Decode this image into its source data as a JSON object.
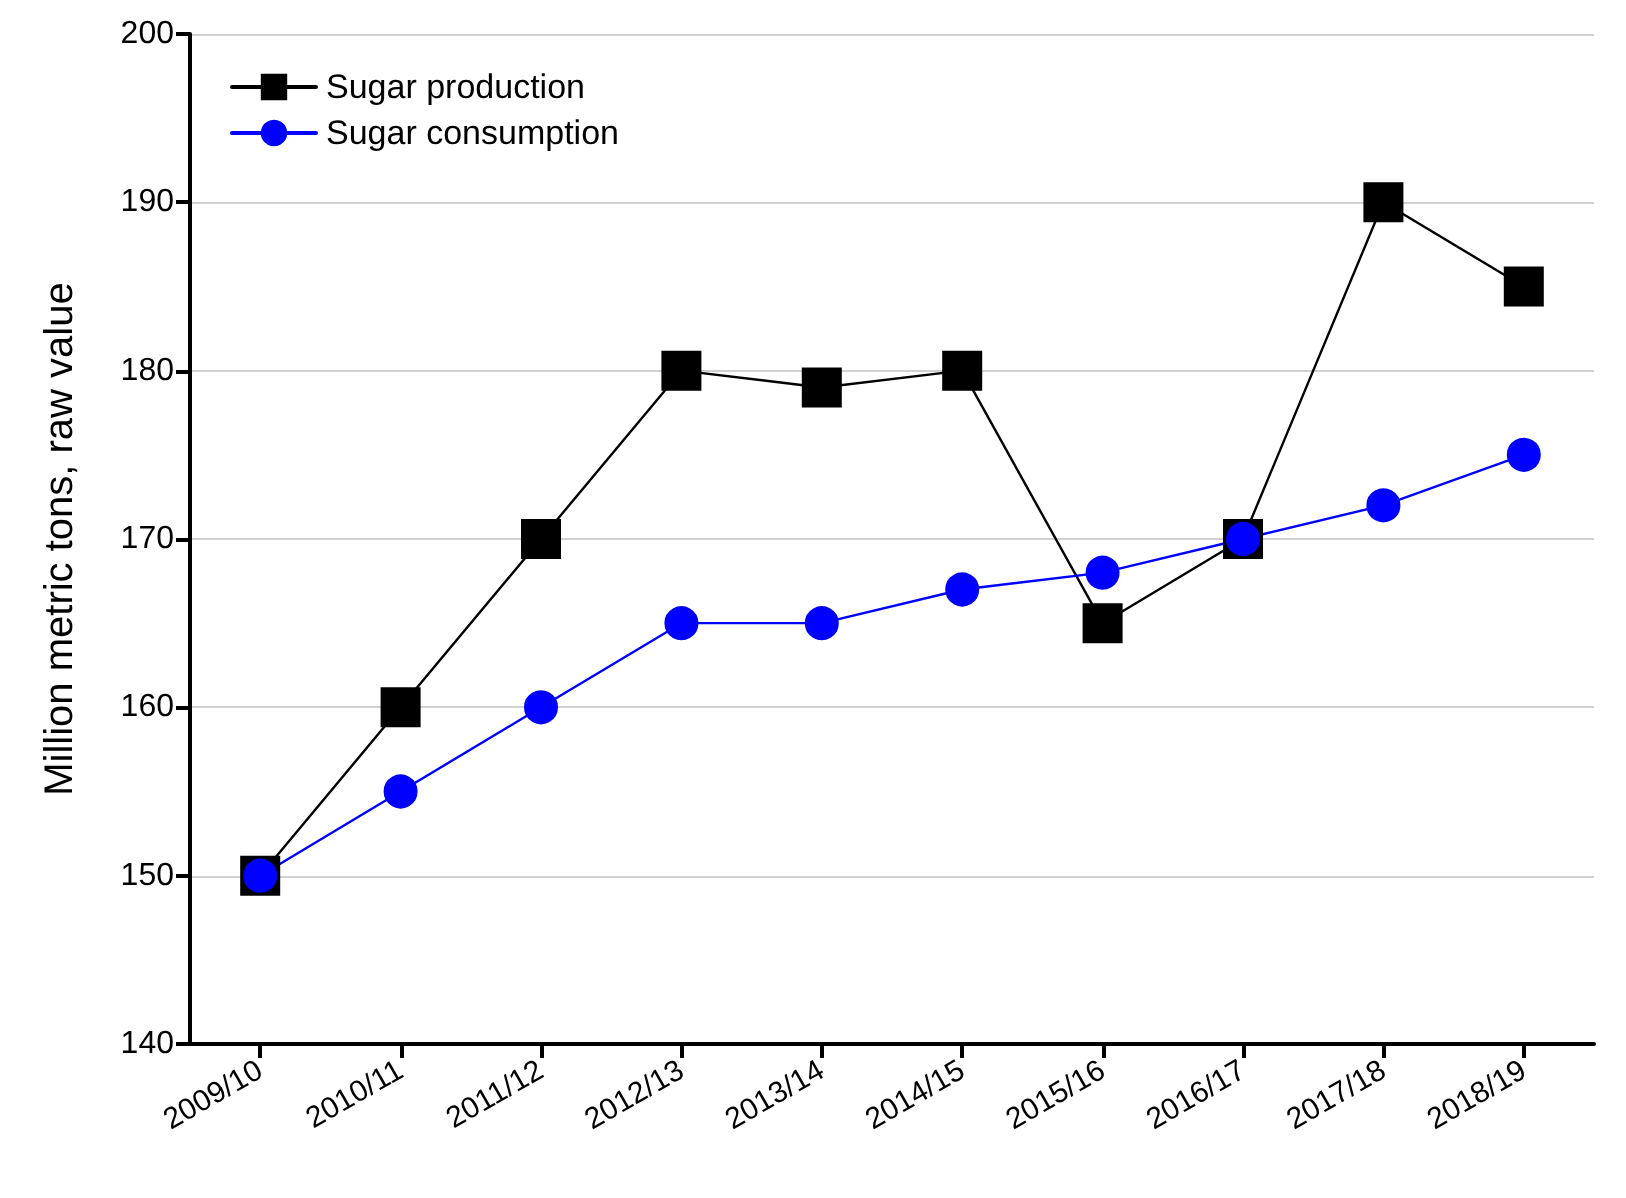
{
  "chart_data": {
    "type": "line",
    "ylabel": "Million metric tons, raw value",
    "categories": [
      "2009/10",
      "2010/11",
      "2011/12",
      "2012/13",
      "2013/14",
      "2014/15",
      "2015/16",
      "2016/17",
      "2017/18",
      "2018/19"
    ],
    "series": [
      {
        "name": "Sugar production",
        "color": "#000000",
        "marker": "square",
        "values": [
          150,
          160,
          170,
          180,
          179,
          180,
          165,
          170,
          190,
          185
        ]
      },
      {
        "name": "Sugar consumption",
        "color": "#0000ff",
        "marker": "circle",
        "values": [
          150,
          155,
          160,
          165,
          165,
          167,
          168,
          170,
          172,
          175
        ]
      }
    ],
    "ylim": [
      140,
      200
    ],
    "yticks": [
      140,
      150,
      160,
      170,
      180,
      190,
      200
    ],
    "grid": "y",
    "legend": "top left",
    "line_style": "solid"
  }
}
